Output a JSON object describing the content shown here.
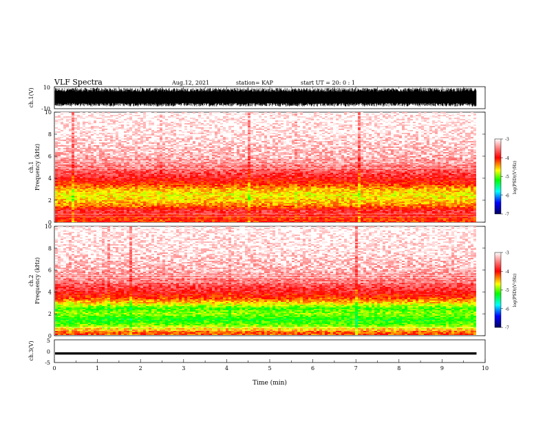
{
  "header": {
    "title": "VLF Spectra",
    "date": "Aug.12, 2021",
    "station": "station= KAP",
    "start": "start  UT =   20: 0  : 1"
  },
  "chart_data": [
    {
      "type": "line",
      "panel": "ch1-waveform",
      "ylabel": "ch.1(V)",
      "ylim": [
        -10,
        10
      ],
      "ytick_labels": [
        "10",
        "-10"
      ],
      "description_values": {
        "amplitude_range": [
          -10,
          10
        ],
        "typical_min": -8,
        "typical_max": 9
      },
      "xlim": [
        0,
        10
      ],
      "data_extent_min": 9.8
    },
    {
      "type": "heatmap",
      "panel": "ch1-spectrogram",
      "ylabel": "Frequency (kHz)",
      "channel_label": "ch.1",
      "ylim": [
        0,
        10
      ],
      "yticks": [
        0,
        2,
        4,
        6,
        8,
        10
      ],
      "xlim": [
        0,
        10
      ],
      "data_extent_min": 9.8,
      "colorbar": {
        "label": "log(PSD)(V²/Hz)",
        "range": [
          -7,
          -3
        ],
        "ticks": [
          "-3",
          "-4",
          "-5",
          "-6",
          "-7"
        ],
        "colors": [
          "#ffffff",
          "#ff0000",
          "#ffff00",
          "#00ff00",
          "#00ffff",
          "#0000ff",
          "#000080"
        ]
      },
      "profile": [
        {
          "f": 0.3,
          "level": -3.9
        },
        {
          "f": 1.0,
          "level": -3.6
        },
        {
          "f": 1.5,
          "level": -4.1
        },
        {
          "f": 2.0,
          "level": -4.3
        },
        {
          "f": 2.5,
          "level": -4.4
        },
        {
          "f": 3.0,
          "level": -4.2
        },
        {
          "f": 3.5,
          "level": -3.9
        },
        {
          "f": 4.0,
          "level": -3.7
        },
        {
          "f": 5.0,
          "level": -3.4
        },
        {
          "f": 6.0,
          "level": -3.2
        },
        {
          "f": 8.0,
          "level": -3.05
        },
        {
          "f": 10.0,
          "level": -3.0
        }
      ]
    },
    {
      "type": "heatmap",
      "panel": "ch2-spectrogram",
      "ylabel": "Frequency (kHz)",
      "channel_label": "ch.2",
      "ylim": [
        0,
        10
      ],
      "yticks": [
        0,
        2,
        4,
        6,
        8,
        10
      ],
      "xlim": [
        0,
        10
      ],
      "data_extent_min": 9.8,
      "colorbar": {
        "label": "log(PSD)(V²/Hz)",
        "range": [
          -7,
          -3
        ],
        "ticks": [
          "-3",
          "-4",
          "-5",
          "-6",
          "-7"
        ],
        "colors": [
          "#ffffff",
          "#ff0000",
          "#ffff00",
          "#00ff00",
          "#00ffff",
          "#0000ff",
          "#000080"
        ]
      },
      "profile": [
        {
          "f": 0.3,
          "level": -4.0
        },
        {
          "f": 1.0,
          "level": -4.7
        },
        {
          "f": 1.5,
          "level": -4.9
        },
        {
          "f": 2.0,
          "level": -4.6
        },
        {
          "f": 2.5,
          "level": -4.8
        },
        {
          "f": 3.0,
          "level": -4.3
        },
        {
          "f": 3.5,
          "level": -3.9
        },
        {
          "f": 4.0,
          "level": -3.7
        },
        {
          "f": 5.0,
          "level": -3.4
        },
        {
          "f": 6.0,
          "level": -3.2
        },
        {
          "f": 8.0,
          "level": -3.05
        },
        {
          "f": 10.0,
          "level": -3.0
        }
      ]
    },
    {
      "type": "line",
      "panel": "ch3-waveform",
      "ylabel": "ch.3(V)",
      "ylim": [
        -5,
        5
      ],
      "ytick_labels": [
        "5",
        "0",
        "-5"
      ],
      "band": [
        -1.5,
        -0.5
      ],
      "xlim": [
        0,
        10
      ],
      "data_extent_min": 9.8,
      "xlabel": "Time (min)",
      "xticks": [
        "0",
        "1",
        "2",
        "3",
        "4",
        "5",
        "6",
        "7",
        "8",
        "9",
        "10"
      ]
    }
  ]
}
